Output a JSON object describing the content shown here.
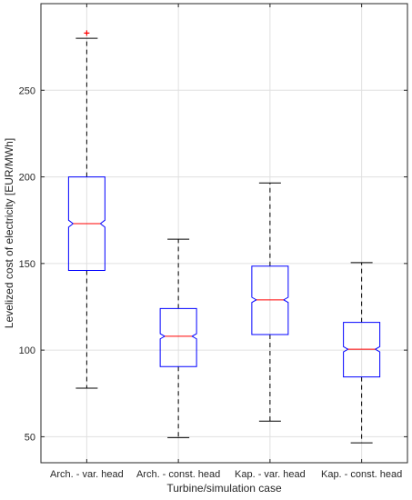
{
  "chart_data": {
    "type": "boxplot",
    "xlabel": "Turbine/simulation case",
    "ylabel": "Levelized cost of electricity [EUR/MWh]",
    "ylim": [
      35,
      300
    ],
    "yticks": [
      50,
      100,
      150,
      200,
      250
    ],
    "grid": true,
    "notched": true,
    "categories": [
      "Arch. - var. head",
      "Arch. - const. head",
      "Kap. - var. head",
      "Kap. - const. head"
    ],
    "boxes": [
      {
        "category": "Arch. - var. head",
        "whisker_low": 78,
        "q1": 146,
        "median": 173,
        "q3": 200,
        "whisker_high": 280,
        "notch_low": 171,
        "notch_high": 175,
        "outliers": [
          283
        ]
      },
      {
        "category": "Arch. - const. head",
        "whisker_low": 49.5,
        "q1": 90.5,
        "median": 108,
        "q3": 124,
        "whisker_high": 164,
        "notch_low": 106.5,
        "notch_high": 109.5,
        "outliers": []
      },
      {
        "category": "Kap. - var. head",
        "whisker_low": 59,
        "q1": 109,
        "median": 129,
        "q3": 148.5,
        "whisker_high": 196.5,
        "notch_low": 127.5,
        "notch_high": 130.5,
        "outliers": []
      },
      {
        "category": "Kap. - const. head",
        "whisker_low": 46.5,
        "q1": 84.5,
        "median": 100.5,
        "q3": 116,
        "whisker_high": 150.5,
        "notch_low": 99,
        "notch_high": 102,
        "outliers": []
      }
    ],
    "colors": {
      "box": "#0000ff",
      "median": "#ff0000",
      "whisker": "#000000",
      "outlier": "#ff0000",
      "grid": "#e0e0e0",
      "axes": "#262626"
    }
  }
}
